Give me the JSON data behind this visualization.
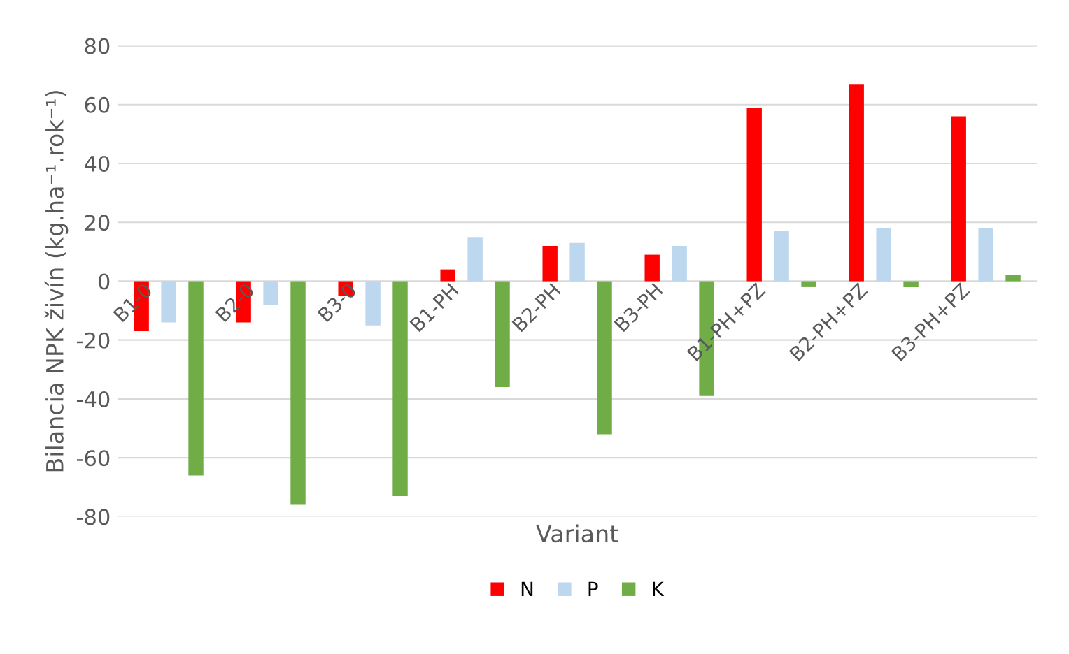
{
  "chart_data": {
    "type": "bar",
    "xlabel": "Variant",
    "ylabel": "Bilancia NPK živín (kg.ha⁻¹.rok⁻¹)",
    "categories": [
      "B1-0",
      "B2-0",
      "B3-0",
      "B1-PH",
      "B2-PH",
      "B3-PH",
      "B1-PH+PZ",
      "B2-PH+PZ",
      "B3-PH+PZ"
    ],
    "series": [
      {
        "name": "N",
        "color": "#ff0000",
        "values": [
          -17,
          -14,
          -5,
          4,
          12,
          9,
          59,
          67,
          56
        ]
      },
      {
        "name": "P",
        "color": "#bdd7ee",
        "values": [
          -14,
          -8,
          -15,
          15,
          13,
          12,
          17,
          18,
          18
        ]
      },
      {
        "name": "K",
        "color": "#70ad47",
        "values": [
          -66,
          -76,
          -73,
          -36,
          -52,
          -39,
          -2,
          -2,
          2
        ]
      }
    ],
    "ylim": [
      -80,
      80
    ],
    "yticks": [
      -80,
      -60,
      -40,
      -20,
      0,
      20,
      40,
      60,
      80
    ],
    "grid": "y",
    "legend": "bottom"
  }
}
